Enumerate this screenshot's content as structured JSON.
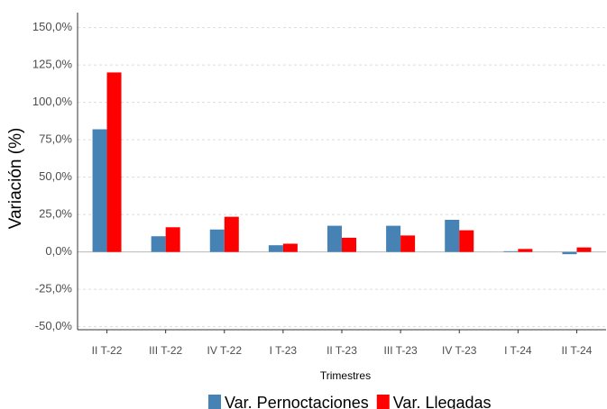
{
  "chart_data": {
    "type": "bar",
    "x_label": "Trimestres",
    "y_label": "Variación (%)",
    "categories": [
      "II T-22",
      "III T-22",
      "IV T-22",
      "I T-23",
      "II T-23",
      "III T-23",
      "IV T-23",
      "I T-24",
      "II T-24"
    ],
    "series": [
      {
        "name": "Var. Pernoctaciones",
        "color": "#4682b4",
        "values": [
          82,
          10.5,
          15,
          4.5,
          17.5,
          17.5,
          21.5,
          0.5,
          -1.5
        ]
      },
      {
        "name": "Var. Llegadas",
        "color": "#ff0000",
        "values": [
          120,
          16.5,
          23.5,
          5.5,
          9.5,
          11,
          14.5,
          2,
          3
        ]
      }
    ],
    "ylim": [
      -52,
      160
    ],
    "yticks": [
      {
        "value": -50,
        "label": "-50,0%"
      },
      {
        "value": -25,
        "label": "-25,0%"
      },
      {
        "value": 0,
        "label": "0,0%"
      },
      {
        "value": 25,
        "label": "25,0%"
      },
      {
        "value": 50,
        "label": "50,0%"
      },
      {
        "value": 75,
        "label": "75,0%"
      },
      {
        "value": 100,
        "label": "100,0%"
      },
      {
        "value": 125,
        "label": "125,0%"
      },
      {
        "value": 150,
        "label": "150,0%"
      }
    ],
    "grid": true,
    "legend": "bottom"
  }
}
